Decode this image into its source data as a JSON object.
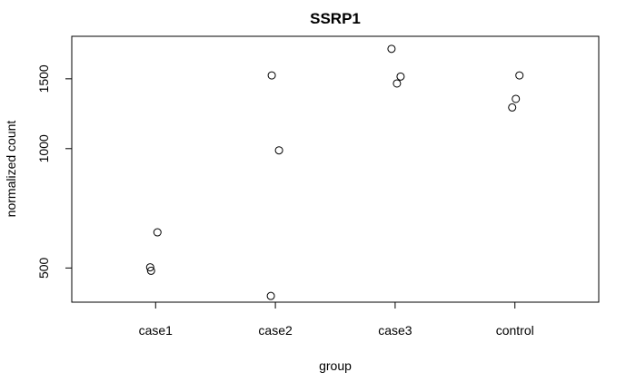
{
  "chart_data": {
    "type": "scatter",
    "title": "SSRP1",
    "xlabel": "group",
    "ylabel": "normalized count",
    "categories": [
      "case1",
      "case2",
      "case3",
      "control"
    ],
    "y_scale": "log",
    "ylim": [
      410,
      1920
    ],
    "y_ticks": [
      500,
      1000,
      1500
    ],
    "y_tick_labels": [
      "500",
      "1000",
      "1500"
    ],
    "grid": false,
    "points": [
      {
        "category": "case1",
        "y": 492
      },
      {
        "category": "case1",
        "y": 502
      },
      {
        "category": "case1",
        "y": 615
      },
      {
        "category": "case2",
        "y": 425
      },
      {
        "category": "case2",
        "y": 990
      },
      {
        "category": "case2",
        "y": 1530
      },
      {
        "category": "case3",
        "y": 1460
      },
      {
        "category": "case3",
        "y": 1520
      },
      {
        "category": "case3",
        "y": 1785
      },
      {
        "category": "control",
        "y": 1270
      },
      {
        "category": "control",
        "y": 1335
      },
      {
        "category": "control",
        "y": 1530
      }
    ]
  }
}
